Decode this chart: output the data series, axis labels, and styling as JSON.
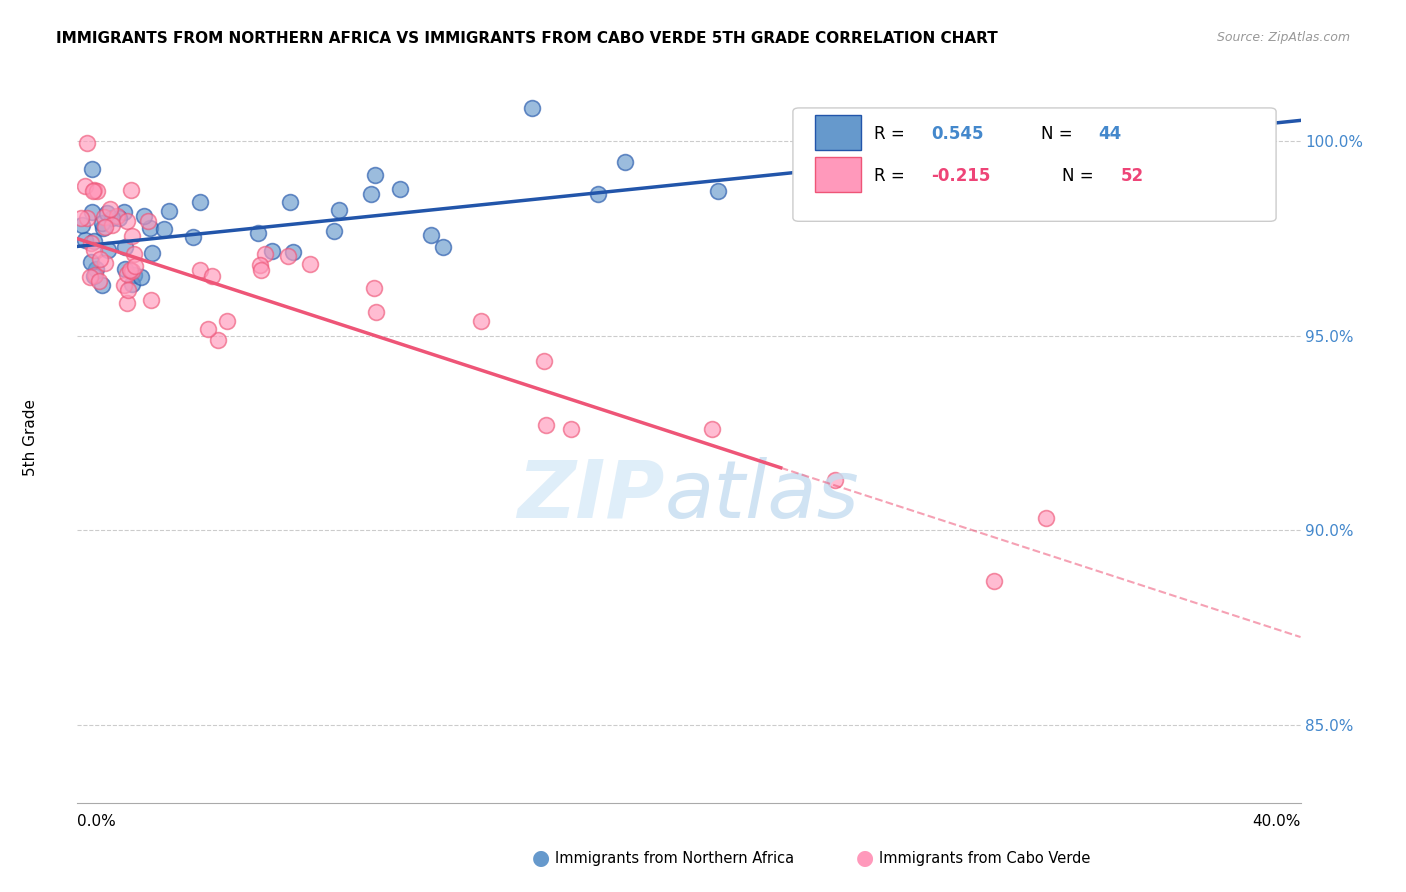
{
  "title": "IMMIGRANTS FROM NORTHERN AFRICA VS IMMIGRANTS FROM CABO VERDE 5TH GRADE CORRELATION CHART",
  "source": "Source: ZipAtlas.com",
  "ylabel": "5th Grade",
  "x_min": 0.0,
  "x_max": 0.4,
  "y_min": 0.83,
  "y_max": 1.018,
  "yticks": [
    0.85,
    0.9,
    0.95,
    1.0
  ],
  "ytick_labels": [
    "85.0%",
    "90.0%",
    "95.0%",
    "100.0%"
  ],
  "legend_r_blue": "0.545",
  "legend_n_blue": "44",
  "legend_r_pink": "-0.215",
  "legend_n_pink": "52",
  "blue_color": "#6699CC",
  "pink_color": "#FF99BB",
  "blue_line_color": "#2255AA",
  "pink_line_color": "#EE5577",
  "blue_slope": 0.081,
  "blue_intercept": 0.973,
  "pink_slope": -0.256,
  "pink_intercept": 0.975
}
